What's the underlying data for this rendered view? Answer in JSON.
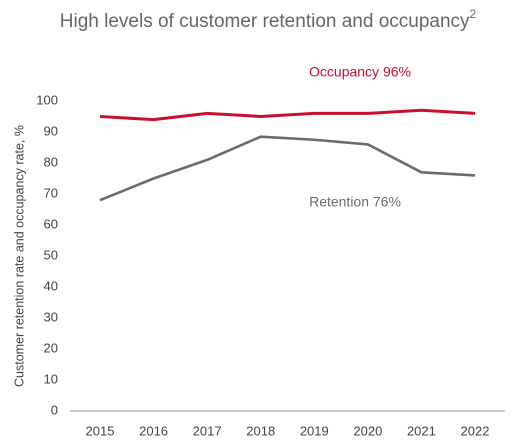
{
  "chart_data": {
    "type": "line",
    "title": "High levels of customer retention and occupancy",
    "title_superscript": "2",
    "ylabel": "Customer retention rate and occupancy rate, %",
    "categories": [
      "2015",
      "2016",
      "2017",
      "2018",
      "2019",
      "2020",
      "2021",
      "2022"
    ],
    "series": [
      {
        "label": "Occupancy 96%",
        "color": "#c8102e",
        "values": [
          95,
          94,
          96,
          95,
          96,
          96,
          97,
          96
        ]
      },
      {
        "label": "Retention 76%",
        "color": "#6b6b6b",
        "values": [
          68,
          75,
          81,
          88.5,
          87.5,
          86,
          77,
          76
        ]
      }
    ],
    "ylim": [
      0,
      100
    ],
    "yticks": [
      0,
      10,
      20,
      30,
      40,
      50,
      60,
      70,
      80,
      90,
      100
    ],
    "grid": false
  }
}
